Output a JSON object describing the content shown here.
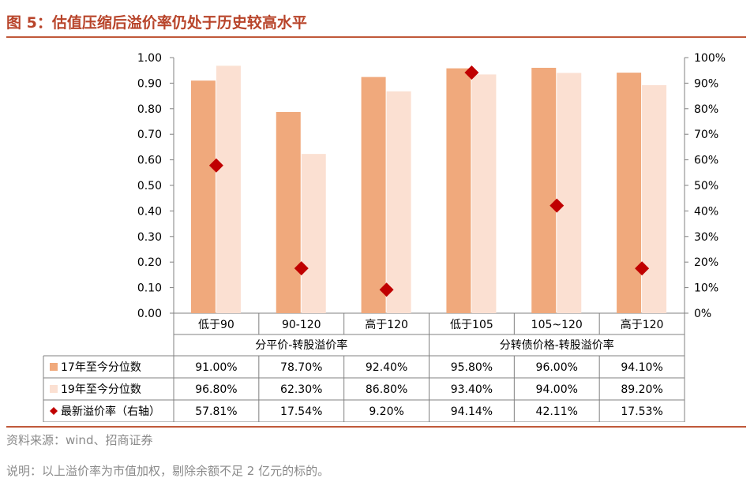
{
  "figure": {
    "title": "图 5：估值压缩后溢价率仍处于历史较高水平",
    "source": "资料来源：wind、招商证券",
    "note": "说明：以上溢价率为市值加权，剔除余额不足 2 亿元的标的。"
  },
  "colors": {
    "title": "#b8442a",
    "rule": "#c0593a",
    "series_2017": "#f0a97c",
    "series_2019": "#fbe0d2",
    "latest": "#c00000"
  },
  "chart_data": {
    "type": "bar",
    "categories": [
      "低于90",
      "90-120",
      "高于120",
      "低于105",
      "105~120",
      "高于120"
    ],
    "groups": [
      {
        "label": "分平价-转股溢价率",
        "span": 3
      },
      {
        "label": "分转债价格-转股溢价率",
        "span": 3
      }
    ],
    "series": [
      {
        "name": "17年至今分位数",
        "type": "bar",
        "axis": "left",
        "values": [
          0.91,
          0.787,
          0.924,
          0.958,
          0.96,
          0.941
        ]
      },
      {
        "name": "19年至今分位数",
        "type": "bar",
        "axis": "left",
        "values": [
          0.968,
          0.623,
          0.868,
          0.934,
          0.94,
          0.892
        ]
      },
      {
        "name": "最新溢价率（右轴）",
        "type": "scatter",
        "marker": "diamond",
        "axis": "right",
        "values": [
          0.5781,
          0.1754,
          0.092,
          0.9414,
          0.4211,
          0.1753
        ]
      }
    ],
    "table_rows": [
      [
        "91.00%",
        "78.70%",
        "92.40%",
        "95.80%",
        "96.00%",
        "94.10%"
      ],
      [
        "96.80%",
        "62.30%",
        "86.80%",
        "93.40%",
        "94.00%",
        "89.20%"
      ],
      [
        "57.81%",
        "17.54%",
        "9.20%",
        "94.14%",
        "42.11%",
        "17.53%"
      ]
    ],
    "ylim": [
      0,
      1.0
    ],
    "y2lim": [
      0,
      1.0
    ],
    "yticks": [
      "0.00",
      "0.10",
      "0.20",
      "0.30",
      "0.40",
      "0.50",
      "0.60",
      "0.70",
      "0.80",
      "0.90",
      "1.00"
    ],
    "y2ticks": [
      "0%",
      "10%",
      "20%",
      "30%",
      "40%",
      "50%",
      "60%",
      "70%",
      "80%",
      "90%",
      "100%"
    ],
    "grid": false,
    "legend": "data-table"
  }
}
